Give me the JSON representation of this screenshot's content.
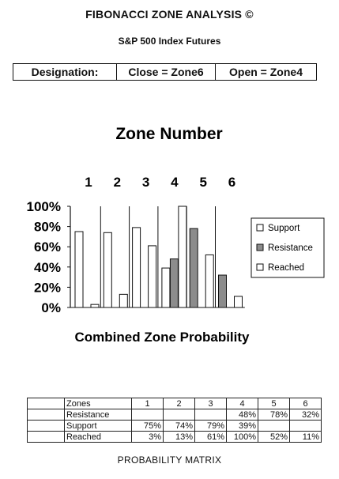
{
  "header": {
    "title": "FIBONACCI ZONE ANALYSIS ©",
    "subtitle": "S&P 500 Index Futures"
  },
  "designation": {
    "label": "Designation:",
    "close": "Close = Zone6",
    "open": "Open = Zone4"
  },
  "chart_data": {
    "type": "bar",
    "title": "Zone Number",
    "xlabel": "Combined Zone Probability",
    "categories": [
      "1",
      "2",
      "3",
      "4",
      "5",
      "6"
    ],
    "series": [
      {
        "name": "Support",
        "values": [
          75,
          74,
          79,
          39,
          null,
          null
        ],
        "color": "#ffffff"
      },
      {
        "name": "Resistance",
        "values": [
          null,
          null,
          null,
          48,
          78,
          32
        ],
        "color": "#8c8c8c"
      },
      {
        "name": "Reached",
        "values": [
          3,
          13,
          61,
          100,
          52,
          11
        ],
        "color": "#ffffff"
      }
    ],
    "yticks": [
      "100%",
      "80%",
      "60%",
      "40%",
      "20%",
      "0%"
    ],
    "ylim": [
      0,
      100
    ],
    "legend": "right",
    "grid": false
  },
  "matrix": {
    "caption": "PROBABILITY MATRIX",
    "rows": [
      {
        "label": "Zones",
        "cells": [
          "1",
          "2",
          "3",
          "4",
          "5",
          "6"
        ]
      },
      {
        "label": "Resistance",
        "cells": [
          "",
          "",
          "",
          "48%",
          "78%",
          "32%"
        ]
      },
      {
        "label": "Support",
        "cells": [
          "75%",
          "74%",
          "79%",
          "39%",
          "",
          ""
        ]
      },
      {
        "label": "Reached",
        "cells": [
          "3%",
          "13%",
          "61%",
          "100%",
          "52%",
          "11%"
        ]
      }
    ]
  }
}
